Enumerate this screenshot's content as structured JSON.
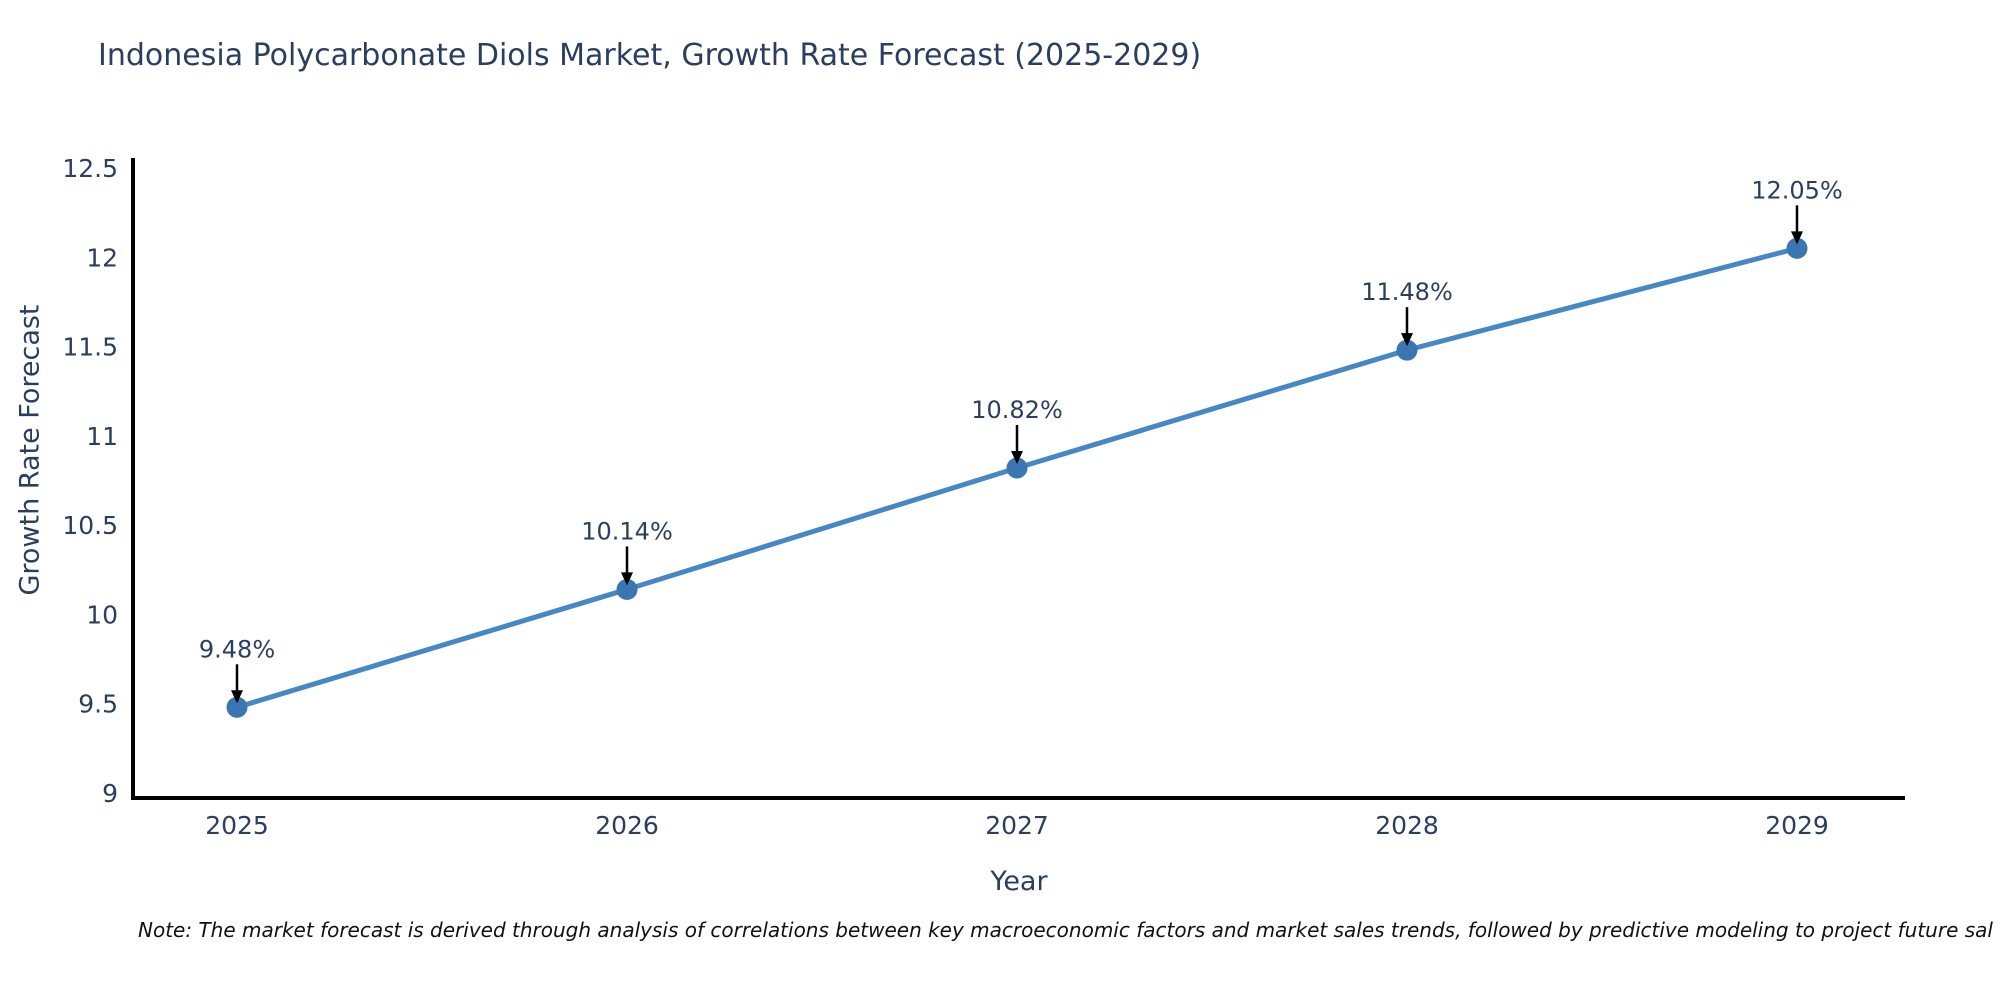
{
  "title": "Indonesia Polycarbonate Diols Market, Growth Rate Forecast (2025-2029)",
  "note": "Note: The market forecast is derived through analysis of correlations between key macroeconomic factors and market sales trends, followed by predictive modeling to project future sal",
  "chart_data": {
    "type": "line",
    "title": "Indonesia Polycarbonate Diols Market, Growth Rate Forecast (2025-2029)",
    "xlabel": "Year",
    "ylabel": "Growth Rate Forecast",
    "x": [
      "2025",
      "2026",
      "2027",
      "2028",
      "2029"
    ],
    "values": [
      9.48,
      10.14,
      10.82,
      11.48,
      12.05
    ],
    "point_labels": [
      "9.48%",
      "10.14%",
      "10.82%",
      "11.48%",
      "12.05%"
    ],
    "ylim": [
      9,
      12.5
    ],
    "yticks": [
      "9",
      "9.5",
      "10",
      "10.5",
      "11",
      "11.5",
      "12",
      "12.5"
    ],
    "ytick_values": [
      9,
      9.5,
      10,
      10.5,
      11,
      11.5,
      12,
      12.5
    ],
    "grid": false,
    "legend_position": "none",
    "colors": {
      "line": "#4687c6",
      "marker": "#3a76b2",
      "axis": "#000000",
      "text": "#2a3f5f",
      "annotation_arrow": "#000000"
    }
  }
}
